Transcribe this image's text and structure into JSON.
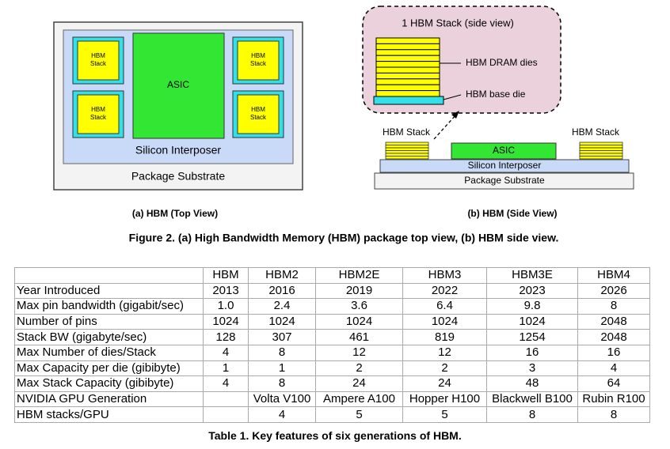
{
  "figure": {
    "top_view": {
      "asic": "ASIC",
      "stack_label_lines": [
        "HBM",
        "Stack"
      ],
      "interposer": "Silicon Interposer",
      "substrate": "Package Substrate",
      "caption": "(a) HBM (Top View)"
    },
    "side_view": {
      "stack_title": "1 HBM Stack (side view)",
      "dram_dies": "HBM DRAM dies",
      "base_die": "HBM base die",
      "hbm_stack": "HBM Stack",
      "asic": "ASIC",
      "interposer": "Silicon Interposer",
      "substrate": "Package Substrate",
      "caption": "(b) HBM (Side View)"
    },
    "caption": "Figure 2. (a) High Bandwidth Memory (HBM) package top view, (b) HBM side view."
  },
  "table": {
    "header": [
      "HBM",
      "HBM2",
      "HBM2E",
      "HBM3",
      "HBM3E",
      "HBM4"
    ],
    "rows": [
      [
        "Year Introduced",
        "2013",
        "2016",
        "2019",
        "2022",
        "2023",
        "2026"
      ],
      [
        "Max pin bandwidth (gigabit/sec)",
        "1.0",
        "2.4",
        "3.6",
        "6.4",
        "9.8",
        "8"
      ],
      [
        "Number of pins",
        "1024",
        "1024",
        "1024",
        "1024",
        "1024",
        "2048"
      ],
      [
        "Stack BW (gigabyte/sec)",
        "128",
        "307",
        "461",
        "819",
        "1254",
        "2048"
      ],
      [
        "Max Number of dies/Stack",
        "4",
        "8",
        "12",
        "12",
        "16",
        "16"
      ],
      [
        "Max Capacity per die (gibibyte)",
        "1",
        "1",
        "2",
        "2",
        "3",
        "4"
      ],
      [
        "Max Stack Capacity (gibibyte)",
        "4",
        "8",
        "24",
        "24",
        "48",
        "64"
      ],
      [
        "NVIDIA GPU Generation",
        null,
        "Volta V100",
        "Ampere A100",
        "Hopper H100",
        "Blackwell B100",
        "Rubin R100"
      ],
      [
        "HBM stacks/GPU",
        null,
        "4",
        "5",
        "5",
        "8",
        "8"
      ]
    ],
    "caption": "Table 1. Key features of six generations of HBM."
  }
}
